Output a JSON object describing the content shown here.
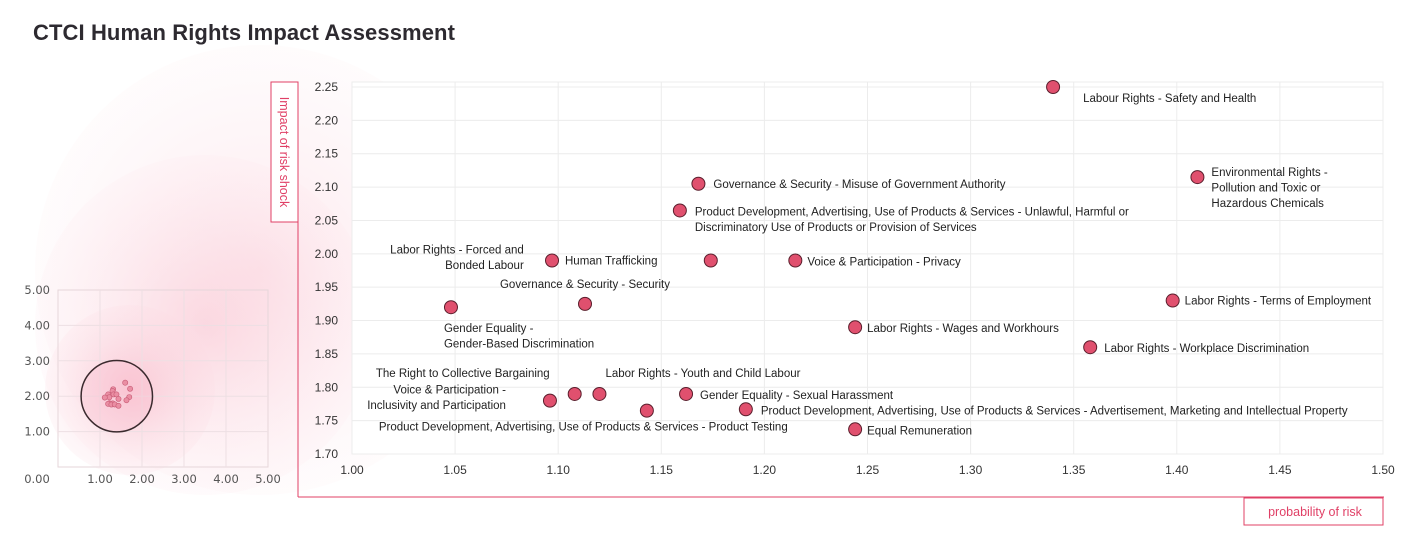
{
  "title": "CTCI Human Rights Impact Assessment",
  "colors": {
    "point_fill": "#e0506e",
    "point_stroke": "#5a1e2c",
    "accent": "#e04066",
    "grid": "#ececec",
    "glow": "#fbd3dd"
  },
  "chart_data": [
    {
      "type": "scatter",
      "title": "CTCI Human Rights Impact Assessment",
      "xlabel": "probability of risk",
      "ylabel": "Impact of risk shock",
      "xlim": [
        1.0,
        1.5
      ],
      "ylim": [
        1.7,
        2.25
      ],
      "xticks": [
        "1.00",
        "1.05",
        "1.10",
        "1.15",
        "1.20",
        "1.25",
        "1.30",
        "1.35",
        "1.40",
        "1.45",
        "1.50"
      ],
      "yticks": [
        "1.70",
        "1.75",
        "1.80",
        "1.85",
        "1.90",
        "1.95",
        "2.00",
        "2.05",
        "2.10",
        "2.15",
        "2.20",
        "2.25"
      ],
      "grid": true,
      "points": [
        {
          "x": 1.34,
          "y": 2.25,
          "label": [
            "Labour Rights - Safety and Health"
          ]
        },
        {
          "x": 1.41,
          "y": 2.115,
          "label": [
            "Environmental Rights -",
            "Pollution and Toxic or",
            "Hazardous Chemicals"
          ]
        },
        {
          "x": 1.168,
          "y": 2.105,
          "label": [
            "Governance & Security - Misuse of Government Authority"
          ]
        },
        {
          "x": 1.159,
          "y": 2.065,
          "label": [
            "Product Development, Advertising, Use of Products & Services - Unlawful, Harmful or",
            "Discriminatory Use of Products or Provision of Services"
          ]
        },
        {
          "x": 1.097,
          "y": 1.99,
          "label": [
            "Human Trafficking"
          ]
        },
        {
          "x": 1.174,
          "y": 1.99,
          "label": [
            "Labor Rights - Forced and",
            "Bonded Labour"
          ]
        },
        {
          "x": 1.215,
          "y": 1.99,
          "label": [
            "Voice & Participation - Privacy"
          ]
        },
        {
          "x": 1.113,
          "y": 1.925,
          "label": [
            "Governance & Security - Security"
          ]
        },
        {
          "x": 1.048,
          "y": 1.92,
          "label": [
            "Gender Equality -",
            "Gender-Based Discrimination"
          ]
        },
        {
          "x": 1.398,
          "y": 1.93,
          "label": [
            "Labor Rights - Terms of Employment"
          ]
        },
        {
          "x": 1.244,
          "y": 1.89,
          "label": [
            "Labor Rights - Wages and Workhours"
          ]
        },
        {
          "x": 1.358,
          "y": 1.86,
          "label": [
            "Labor Rights - Workplace Discrimination"
          ]
        },
        {
          "x": 1.108,
          "y": 1.79,
          "label": [
            "The Right to Collective Bargaining"
          ]
        },
        {
          "x": 1.12,
          "y": 1.79,
          "label": [
            "Labor Rights - Youth and Child Labour"
          ]
        },
        {
          "x": 1.162,
          "y": 1.79,
          "label": [
            "Gender Equality - Sexual Harassment"
          ]
        },
        {
          "x": 1.096,
          "y": 1.78,
          "label": [
            "Voice & Participation -",
            "Inclusivity and Participation"
          ]
        },
        {
          "x": 1.143,
          "y": 1.765,
          "label": [
            "Product Development, Advertising, Use of Products & Services - Product Testing"
          ]
        },
        {
          "x": 1.191,
          "y": 1.767,
          "label": [
            "Product Development, Advertising, Use of Products & Services - Advertisement, Marketing and Intellectual Property"
          ]
        },
        {
          "x": 1.244,
          "y": 1.737,
          "label": [
            "Equal Remuneration"
          ]
        }
      ]
    },
    {
      "type": "scatter",
      "title": "",
      "xlim": [
        0,
        5
      ],
      "ylim": [
        0,
        5
      ],
      "xticks": [
        "0.00",
        "1.00",
        "2.00",
        "3.00",
        "4.00",
        "5.00"
      ],
      "yticks": [
        "0.00",
        "1.00",
        "2.00",
        "3.00",
        "4.00",
        "5.00"
      ],
      "grid": true,
      "focus_circle": {
        "cx": 1.4,
        "cy": 2.0,
        "r": 0.85
      }
    }
  ]
}
